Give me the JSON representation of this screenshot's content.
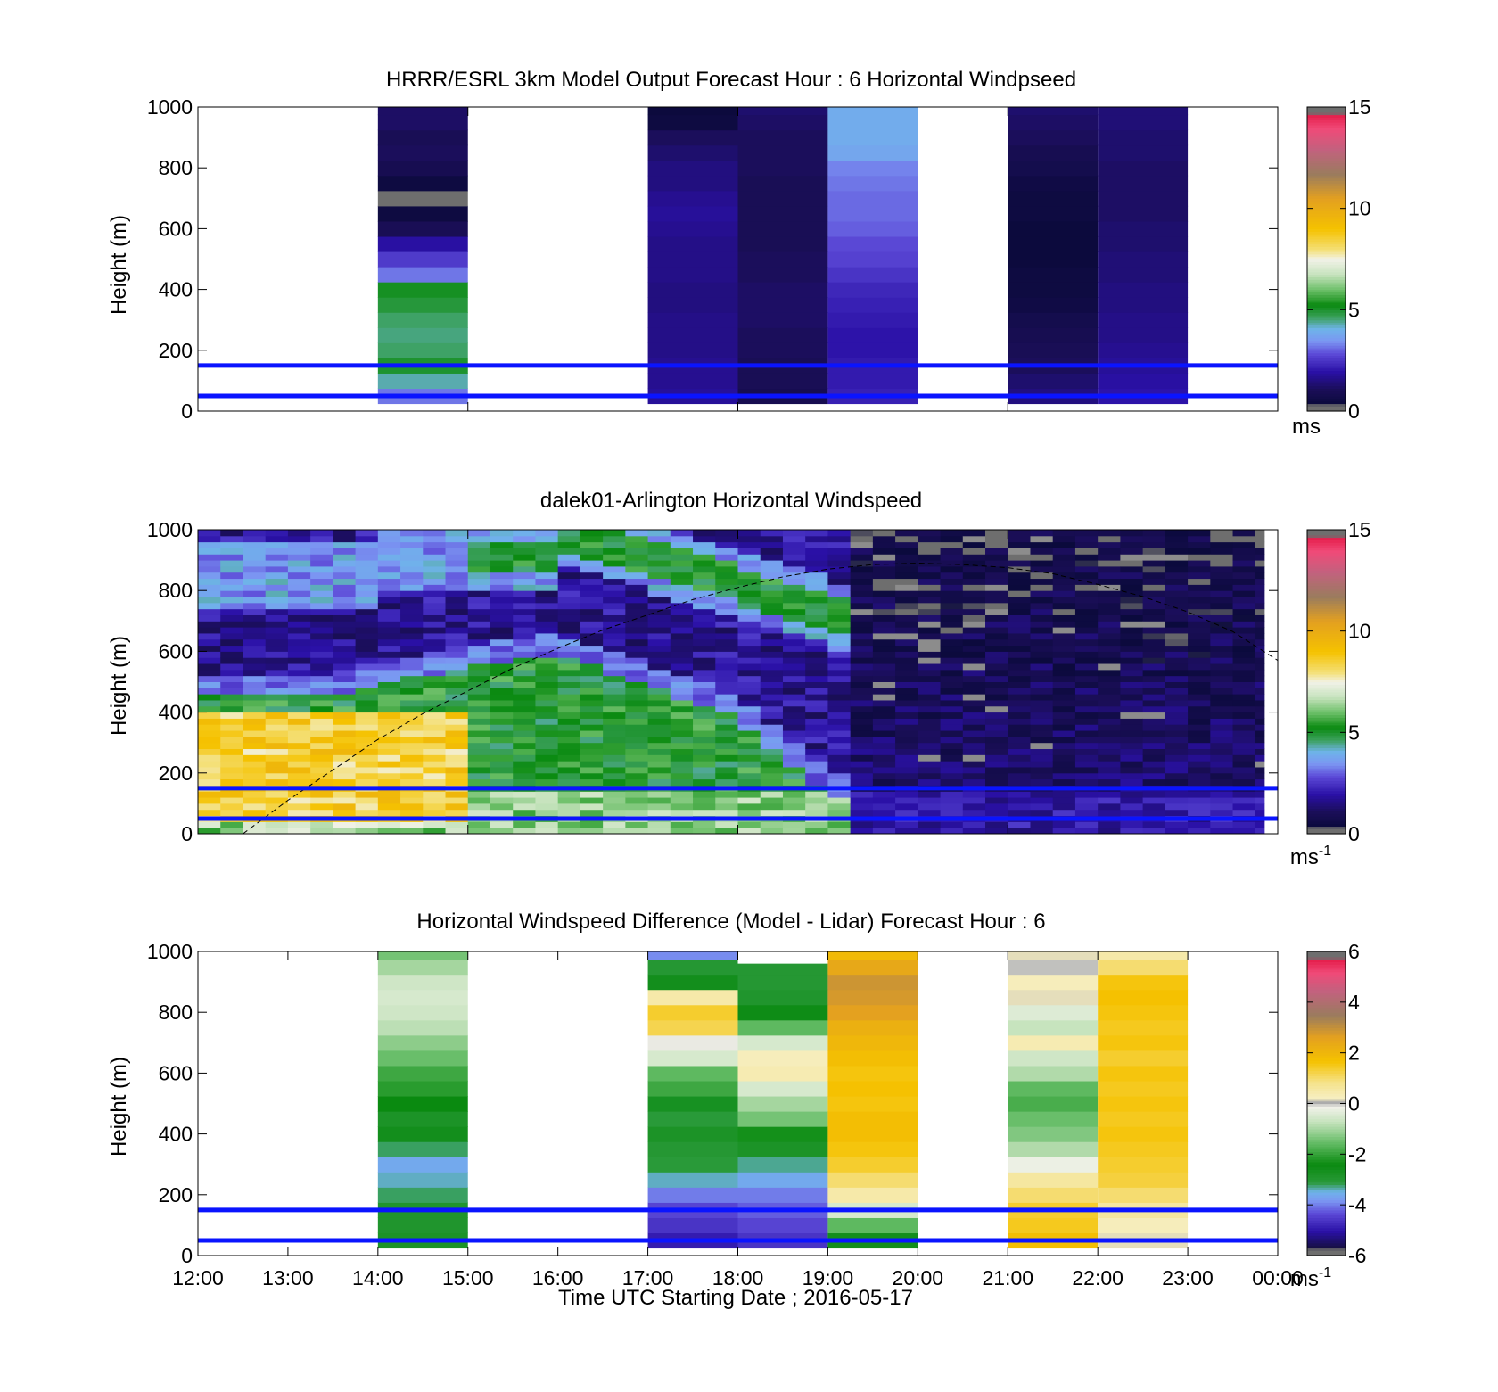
{
  "chart_data": [
    {
      "type": "heatmap",
      "title": "HRRR/ESRL 3km Model Output   Forecast Hour : 6 Horizontal Windpseed",
      "ylabel": "Height (m)",
      "xlabel": "",
      "ylim": [
        0,
        1000
      ],
      "yticks": [
        "0",
        "200",
        "400",
        "600",
        "800",
        "1000"
      ],
      "xlim_hours": [
        12,
        24
      ],
      "colorbar": {
        "ticks": [
          "0",
          "5",
          "10",
          "15"
        ],
        "range": [
          0,
          15
        ],
        "unit": "ms",
        "unit_sup": "",
        "palette": "speed"
      },
      "reference_lines_m": [
        50,
        150
      ],
      "columns": [
        {
          "start": 14,
          "end": 15,
          "bottom": 25,
          "top": 1000,
          "step": 50,
          "values": [
            3.2,
            4.3,
            5.0,
            4.6,
            4.5,
            4.6,
            4.9,
            5.1,
            3.2,
            2.6,
            1.9,
            1.0,
            0.5,
            0.3,
            0.5,
            0.9,
            1.1,
            1.0,
            1.2,
            1.2
          ]
        },
        {
          "start": 17,
          "end": 18,
          "bottom": 25,
          "top": 1000,
          "step": 50,
          "values": [
            1.8,
            1.7,
            1.7,
            1.6,
            1.6,
            1.6,
            1.5,
            1.5,
            1.6,
            1.6,
            1.6,
            1.7,
            1.8,
            1.7,
            1.5,
            1.5,
            1.3,
            1.1,
            0.5,
            0.4
          ]
        },
        {
          "start": 18,
          "end": 19,
          "bottom": 25,
          "top": 1000,
          "step": 50,
          "values": [
            0.9,
            1.0,
            1.0,
            1.1,
            1.1,
            1.2,
            1.2,
            1.2,
            1.1,
            1.1,
            1.0,
            1.0,
            1.0,
            1.0,
            1.0,
            1.1,
            1.1,
            1.1,
            1.2,
            1.3
          ]
        },
        {
          "start": 19,
          "end": 20,
          "bottom": 25,
          "top": 1000,
          "step": 50,
          "values": [
            2.2,
            2.1,
            2.1,
            2.0,
            2.0,
            2.1,
            2.2,
            2.3,
            2.5,
            2.7,
            2.8,
            3.0,
            3.1,
            3.1,
            3.2,
            3.3,
            3.8,
            3.9,
            3.9,
            3.9
          ]
        },
        {
          "start": 21,
          "end": 22,
          "bottom": 25,
          "top": 1000,
          "step": 50,
          "values": [
            1.5,
            1.3,
            1.1,
            1.0,
            0.9,
            0.8,
            0.6,
            0.5,
            0.5,
            0.4,
            0.4,
            0.4,
            0.5,
            0.5,
            0.6,
            0.8,
            0.9,
            1.1,
            1.2,
            1.3
          ]
        },
        {
          "start": 22,
          "end": 23,
          "bottom": 25,
          "top": 1000,
          "step": 50,
          "values": [
            2.0,
            1.9,
            1.8,
            1.7,
            1.6,
            1.6,
            1.5,
            1.5,
            1.4,
            1.4,
            1.3,
            1.3,
            1.2,
            1.2,
            1.2,
            1.2,
            1.3,
            1.3,
            1.4,
            1.4
          ]
        }
      ]
    },
    {
      "type": "heatmap",
      "title": "dalek01-Arlington  Horizontal Windspeed",
      "ylabel": "Height (m)",
      "xlabel": "",
      "ylim": [
        0,
        1000
      ],
      "yticks": [
        "0",
        "200",
        "400",
        "600",
        "800",
        "1000"
      ],
      "xlim_hours": [
        12,
        24
      ],
      "colorbar": {
        "ticks": [
          "0",
          "5",
          "10",
          "15"
        ],
        "range": [
          0,
          15
        ],
        "unit": "ms",
        "unit_sup": "-1",
        "palette": "speed"
      },
      "reference_lines_m": [
        50,
        150
      ],
      "lidar_time_range_hours": [
        12,
        23.85
      ],
      "lidar_time_step_hours": 0.25,
      "lidar_height_range_m": [
        0,
        1000
      ],
      "lidar_height_step_m": 20,
      "dashed_curve": {
        "x_hours": [
          12.5,
          13.0,
          13.5,
          14.0,
          14.5,
          15.0,
          15.5,
          16.0,
          16.5,
          17.0,
          17.5,
          18.0,
          18.5,
          19.0,
          19.5,
          20.0,
          20.5,
          21.0,
          21.5,
          22.0,
          22.5,
          23.0,
          23.5,
          24.0
        ],
        "y_m": [
          0,
          110,
          210,
          310,
          395,
          470,
          545,
          610,
          670,
          720,
          770,
          810,
          845,
          870,
          885,
          890,
          885,
          875,
          855,
          820,
          780,
          730,
          665,
          570
        ]
      }
    },
    {
      "type": "heatmap",
      "title": "Horizontal Windspeed Difference (Model - Lidar) Forecast Hour : 6",
      "ylabel": "Height (m)",
      "xlabel": "Time UTC  Starting Date ; 2016-05-17",
      "ylim": [
        0,
        1000
      ],
      "yticks": [
        "0",
        "200",
        "400",
        "600",
        "800",
        "1000"
      ],
      "xticks": [
        "12:00",
        "13:00",
        "14:00",
        "15:00",
        "16:00",
        "17:00",
        "18:00",
        "19:00",
        "20:00",
        "21:00",
        "22:00",
        "23:00",
        "00:00"
      ],
      "xlim_hours": [
        12,
        24
      ],
      "colorbar": {
        "ticks": [
          "-6",
          "-4",
          "-2",
          "0",
          "2",
          "4",
          "6"
        ],
        "range": [
          -6,
          6
        ],
        "unit": "ms",
        "unit_sup": "-1",
        "palette": "diff"
      },
      "reference_lines_m": [
        50,
        150
      ],
      "columns": [
        {
          "start": 14,
          "end": 15,
          "bottom": 25,
          "top": 1000,
          "step": 50,
          "values": [
            -2.8,
            -2.9,
            -2.9,
            -3.2,
            -3.4,
            -3.6,
            -3.2,
            -2.6,
            -2.8,
            -2.4,
            -2.1,
            -1.9,
            -1.5,
            -1.2,
            -0.8,
            -0.6,
            -0.5,
            -0.6,
            -1.0,
            -1.4
          ]
        },
        {
          "start": 17,
          "end": 18,
          "bottom": 25,
          "top": 1000,
          "step": 50,
          "values": [
            -4.9,
            -4.6,
            -4.4,
            -4.0,
            -3.4,
            -3.1,
            -3.0,
            -2.8,
            -3.1,
            -2.7,
            -1.9,
            -1.6,
            -0.5,
            -0.1,
            1.2,
            1.4,
            0.5,
            -2.6,
            -3.0,
            -3.9
          ]
        },
        {
          "start": 18,
          "end": 19,
          "bottom": 25,
          "top": 960,
          "step": 50,
          "values": [
            -4.6,
            -4.4,
            -4.2,
            -4.0,
            -3.6,
            -3.3,
            -2.8,
            -2.3,
            -1.4,
            -1.0,
            -0.5,
            0.4,
            0.3,
            -0.5,
            -1.6,
            -2.5,
            -2.9,
            -3.0,
            -3.0
          ]
        },
        {
          "start": 19,
          "end": 20,
          "bottom": 25,
          "top": 1000,
          "step": 50,
          "values": [
            -2.6,
            -1.6,
            -0.5,
            0.5,
            1.0,
            1.4,
            1.6,
            1.8,
            1.8,
            1.6,
            1.7,
            1.6,
            1.8,
            2.0,
            2.2,
            2.6,
            2.8,
            2.9,
            2.4,
            1.9
          ]
        },
        {
          "start": 21,
          "end": 22,
          "bottom": 25,
          "top": 1000,
          "step": 50,
          "values": [
            1.8,
            1.5,
            1.4,
            1.0,
            0.6,
            -0.2,
            -0.9,
            -1.3,
            -1.5,
            -1.8,
            -1.6,
            -0.9,
            -0.6,
            0.4,
            -0.7,
            -0.4,
            0.2,
            0.3,
            0.0,
            0.2
          ]
        },
        {
          "start": 22,
          "end": 23,
          "bottom": 25,
          "top": 1000,
          "step": 50,
          "values": [
            0.2,
            0.3,
            0.6,
            1.0,
            1.3,
            1.4,
            1.5,
            1.6,
            1.5,
            1.6,
            1.5,
            1.6,
            1.4,
            1.6,
            1.5,
            1.6,
            1.7,
            1.6,
            1.0,
            0.5
          ]
        }
      ]
    }
  ]
}
